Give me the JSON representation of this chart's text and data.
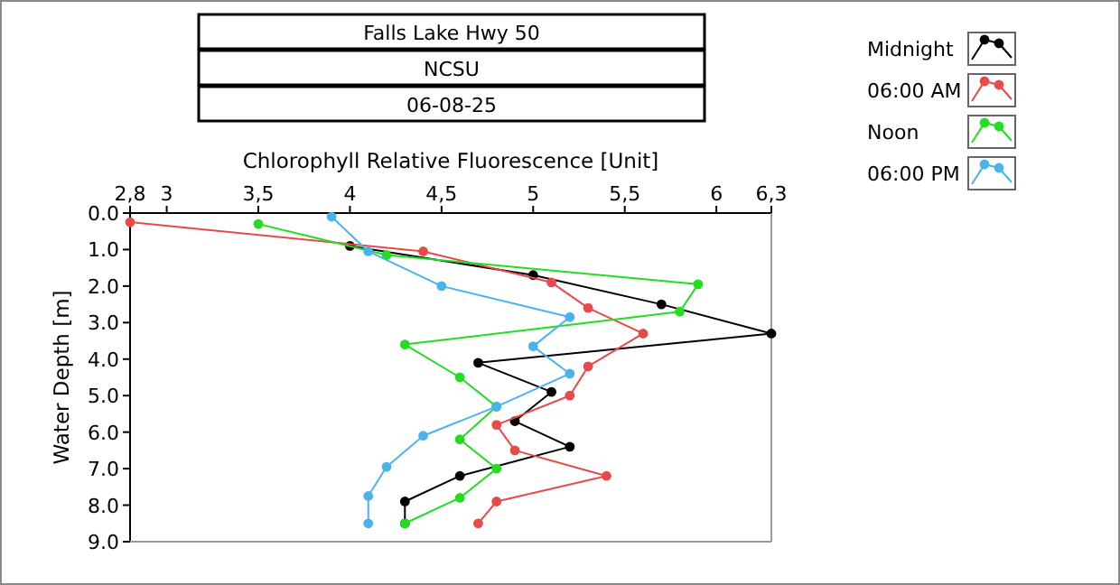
{
  "chart_data": {
    "type": "line",
    "title": "Falls Lake Hwy 50",
    "subtitle": "NCSU",
    "annotations": [
      "06-08-25"
    ],
    "xlabel": "Chlorophyll Relative Fluorescence [Unit]",
    "ylabel": "Water Depth [m]",
    "xlim": [
      2.8,
      6.3
    ],
    "xticks": [
      {
        "value": 2.8,
        "label": "2,8"
      },
      3,
      {
        "value": 3.5,
        "label": "3,5"
      },
      4,
      {
        "value": 4.5,
        "label": "4,5"
      },
      5,
      {
        "value": 5.5,
        "label": "5,5"
      },
      6,
      {
        "value": 6.3,
        "label": "6,3"
      }
    ],
    "ylim": [
      9,
      0
    ],
    "yticks": [
      {
        "value": 0,
        "label": "0.0"
      },
      {
        "value": 1,
        "label": "1.0"
      },
      {
        "value": 2,
        "label": "2.0"
      },
      {
        "value": 3,
        "label": "3.0"
      },
      {
        "value": 4,
        "label": "4.0"
      },
      {
        "value": 5,
        "label": "5.0"
      },
      {
        "value": 6,
        "label": "6.0"
      },
      {
        "value": 7,
        "label": "7.0"
      },
      {
        "value": 8,
        "label": "8.0"
      },
      {
        "value": 9,
        "label": "9.0"
      }
    ],
    "marker": "circle",
    "legend": "top right",
    "grid": false,
    "series": [
      {
        "name": "Midnight",
        "color": "#000000",
        "x": [
          4.0,
          5.0,
          5.7,
          6.3,
          4.7,
          5.1,
          4.9,
          5.2,
          4.6,
          4.3,
          4.3
        ],
        "values": [
          0.9,
          1.7,
          2.5,
          3.3,
          4.1,
          4.9,
          5.7,
          6.4,
          7.2,
          7.9,
          8.5
        ]
      },
      {
        "name": "06:00 AM",
        "color": "#e84a4a",
        "x": [
          2.8,
          4.4,
          5.1,
          5.3,
          5.6,
          5.3,
          5.2,
          4.8,
          4.9,
          5.4,
          4.8,
          4.7
        ],
        "values": [
          0.25,
          1.05,
          1.9,
          2.6,
          3.3,
          4.2,
          5.0,
          5.8,
          6.5,
          7.2,
          7.9,
          8.5
        ]
      },
      {
        "name": "Noon",
        "color": "#22dd22",
        "x": [
          3.5,
          4.2,
          5.9,
          5.8,
          4.3,
          4.6,
          4.8,
          4.6,
          4.8,
          4.6,
          4.3
        ],
        "values": [
          0.3,
          1.15,
          1.95,
          2.7,
          3.6,
          4.5,
          5.3,
          6.2,
          7.0,
          7.8,
          8.5
        ]
      },
      {
        "name": "06:00 PM",
        "color": "#4ab4ea",
        "x": [
          3.9,
          4.1,
          4.5,
          5.2,
          5.0,
          5.2,
          4.8,
          4.4,
          4.2,
          4.1,
          4.1
        ],
        "values": [
          0.1,
          1.05,
          2.0,
          2.85,
          3.65,
          4.4,
          5.3,
          6.1,
          6.95,
          7.75,
          8.5
        ]
      }
    ]
  }
}
